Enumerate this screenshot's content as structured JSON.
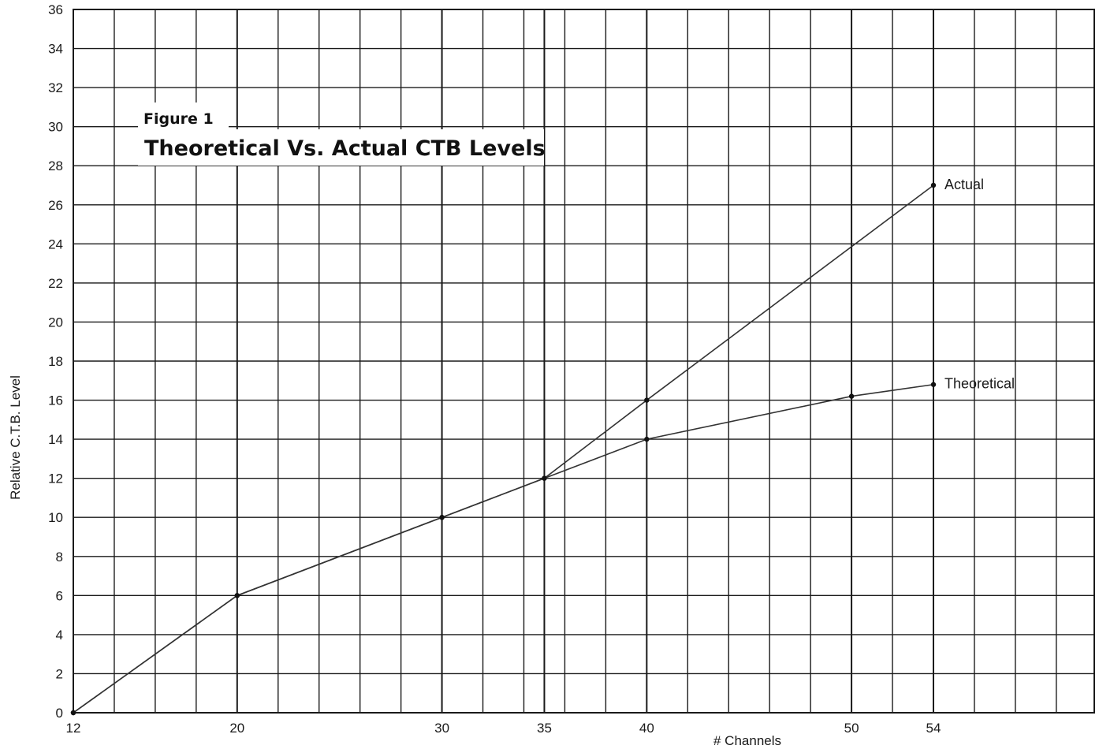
{
  "chart_data": {
    "type": "line",
    "figure_label": "Figure 1",
    "title": "Theoretical Vs. Actual CTB Levels",
    "xlabel": "# Channels",
    "ylabel": "Relative C.T.B. Level",
    "xlim": [
      12,
      54
    ],
    "ylim": [
      0,
      36
    ],
    "x_ticks": [
      12,
      20,
      30,
      35,
      40,
      50,
      54
    ],
    "y_ticks": [
      0,
      2,
      4,
      6,
      8,
      10,
      12,
      14,
      16,
      18,
      20,
      22,
      24,
      26,
      28,
      30,
      32,
      34,
      36
    ],
    "grid": true,
    "series": [
      {
        "name": "Actual",
        "x": [
          12,
          20,
          30,
          35,
          40,
          54
        ],
        "y": [
          0,
          6,
          10,
          12,
          16,
          27
        ]
      },
      {
        "name": "Theoretical",
        "x": [
          12,
          20,
          30,
          35,
          40,
          50,
          54
        ],
        "y": [
          0,
          6,
          10,
          12,
          14,
          16.2,
          16.8
        ]
      }
    ],
    "colors": {
      "line": "#333333",
      "grid": "#1a1a1a",
      "text": "#1a1a1a"
    }
  }
}
